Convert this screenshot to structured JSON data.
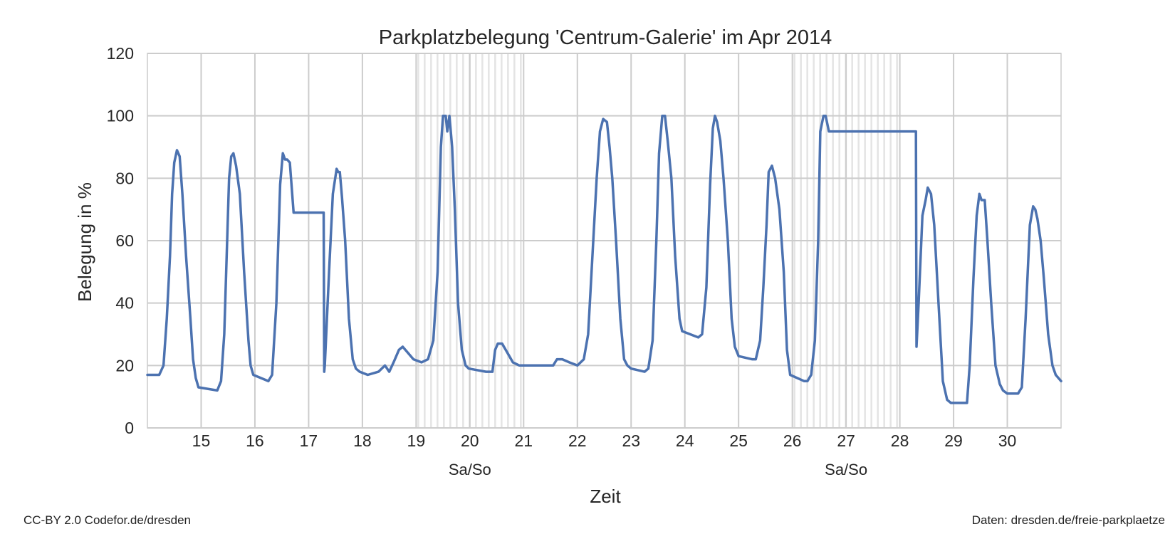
{
  "chart_data": {
    "type": "line",
    "title": "Parkplatzbelegung 'Centrum-Galerie' im Apr 2014",
    "xlabel": "Zeit",
    "ylabel": "Belegung in %",
    "xlim": [
      14.0,
      31.0
    ],
    "ylim": [
      0,
      120
    ],
    "x_ticks": [
      15,
      16,
      17,
      18,
      19,
      20,
      21,
      22,
      23,
      24,
      25,
      26,
      27,
      28,
      29,
      30
    ],
    "y_ticks": [
      0,
      20,
      40,
      60,
      80,
      100,
      120
    ],
    "grid": true,
    "color": "#4c72b0",
    "weekend_bands": [
      {
        "from": 19,
        "to": 21,
        "label": "Sa/So"
      },
      {
        "from": 26,
        "to": 28,
        "label": "Sa/So"
      }
    ],
    "series": [
      {
        "x": [
          14.0,
          14.22,
          14.3,
          14.36,
          14.42,
          14.46,
          14.5,
          14.55,
          14.6,
          14.65,
          14.72,
          14.8,
          14.85,
          14.9,
          14.95,
          15.3,
          15.37,
          15.43,
          15.48,
          15.52,
          15.56,
          15.6,
          15.65,
          15.72,
          15.8,
          15.88,
          15.92,
          15.97,
          16.25,
          16.32,
          16.4,
          16.47,
          16.52,
          16.56,
          16.6,
          16.65,
          16.72,
          17.28,
          17.29,
          17.3,
          17.38,
          17.45,
          17.52,
          17.55,
          17.58,
          17.62,
          17.68,
          17.75,
          17.82,
          17.88,
          17.95,
          18.1,
          18.3,
          18.42,
          18.5,
          18.58,
          18.68,
          18.75,
          18.85,
          18.95,
          19.1,
          19.22,
          19.32,
          19.4,
          19.46,
          19.5,
          19.55,
          19.58,
          19.62,
          19.67,
          19.72,
          19.78,
          19.85,
          19.92,
          19.98,
          20.3,
          20.42,
          20.47,
          20.52,
          20.6,
          20.7,
          20.8,
          20.92,
          21.3,
          21.42,
          21.55,
          21.62,
          21.72,
          21.85,
          22.0,
          22.12,
          22.2,
          22.28,
          22.36,
          22.42,
          22.48,
          22.55,
          22.6,
          22.65,
          22.72,
          22.8,
          22.87,
          22.93,
          23.0,
          23.25,
          23.32,
          23.4,
          23.47,
          23.52,
          23.58,
          23.63,
          23.68,
          23.75,
          23.82,
          23.9,
          23.95,
          24.25,
          24.32,
          24.4,
          24.47,
          24.52,
          24.56,
          24.6,
          24.66,
          24.72,
          24.8,
          24.87,
          24.93,
          25.0,
          25.25,
          25.32,
          25.4,
          25.46,
          25.52,
          25.56,
          25.62,
          25.68,
          25.76,
          25.84,
          25.9,
          25.96,
          26.22,
          26.28,
          26.35,
          26.42,
          26.48,
          26.52,
          26.58,
          26.62,
          26.68,
          28.3,
          28.31,
          28.35,
          28.42,
          28.48,
          28.52,
          28.58,
          28.64,
          28.72,
          28.8,
          28.88,
          28.95,
          29.25,
          29.3,
          29.37,
          29.43,
          29.48,
          29.52,
          29.58,
          29.63,
          29.7,
          29.78,
          29.86,
          29.92,
          30.0,
          30.2,
          30.27,
          30.34,
          30.42,
          30.48,
          30.52,
          30.56,
          30.62,
          30.68,
          30.76,
          30.84,
          30.9,
          31.0
        ],
        "y": [
          17,
          17,
          20,
          35,
          55,
          75,
          85,
          89,
          87,
          75,
          55,
          35,
          22,
          16,
          13,
          12,
          15,
          30,
          58,
          80,
          87,
          88,
          84,
          75,
          50,
          28,
          20,
          17,
          15,
          17,
          40,
          78,
          88,
          86,
          86,
          85,
          69,
          69,
          18,
          20,
          50,
          75,
          83,
          82,
          82,
          74,
          60,
          35,
          22,
          19,
          18,
          17,
          18,
          20,
          18,
          21,
          25,
          26,
          24,
          22,
          21,
          22,
          28,
          50,
          90,
          100,
          100,
          95,
          100,
          90,
          70,
          40,
          25,
          20,
          19,
          18,
          18,
          25,
          27,
          27,
          24,
          21,
          20,
          20,
          20,
          20,
          22,
          22,
          21,
          20,
          22,
          30,
          55,
          80,
          95,
          99,
          98,
          90,
          80,
          60,
          35,
          22,
          20,
          19,
          18,
          19,
          28,
          60,
          88,
          100,
          100,
          92,
          80,
          55,
          35,
          31,
          29,
          30,
          45,
          78,
          96,
          100,
          98,
          92,
          80,
          60,
          35,
          26,
          23,
          22,
          22,
          28,
          45,
          65,
          82,
          84,
          80,
          70,
          50,
          25,
          17,
          15,
          15,
          17,
          28,
          60,
          95,
          100,
          100,
          95,
          95,
          26,
          40,
          68,
          73,
          77,
          75,
          65,
          40,
          15,
          9,
          8,
          8,
          20,
          48,
          68,
          75,
          73,
          73,
          60,
          40,
          20,
          14,
          12,
          11,
          11,
          13,
          35,
          65,
          71,
          70,
          67,
          60,
          48,
          30,
          20,
          17,
          15
        ]
      }
    ]
  },
  "footer": {
    "left": "CC-BY 2.0 Codefor.de/dresden",
    "right": "Daten: dresden.de/freie-parkplaetze"
  }
}
